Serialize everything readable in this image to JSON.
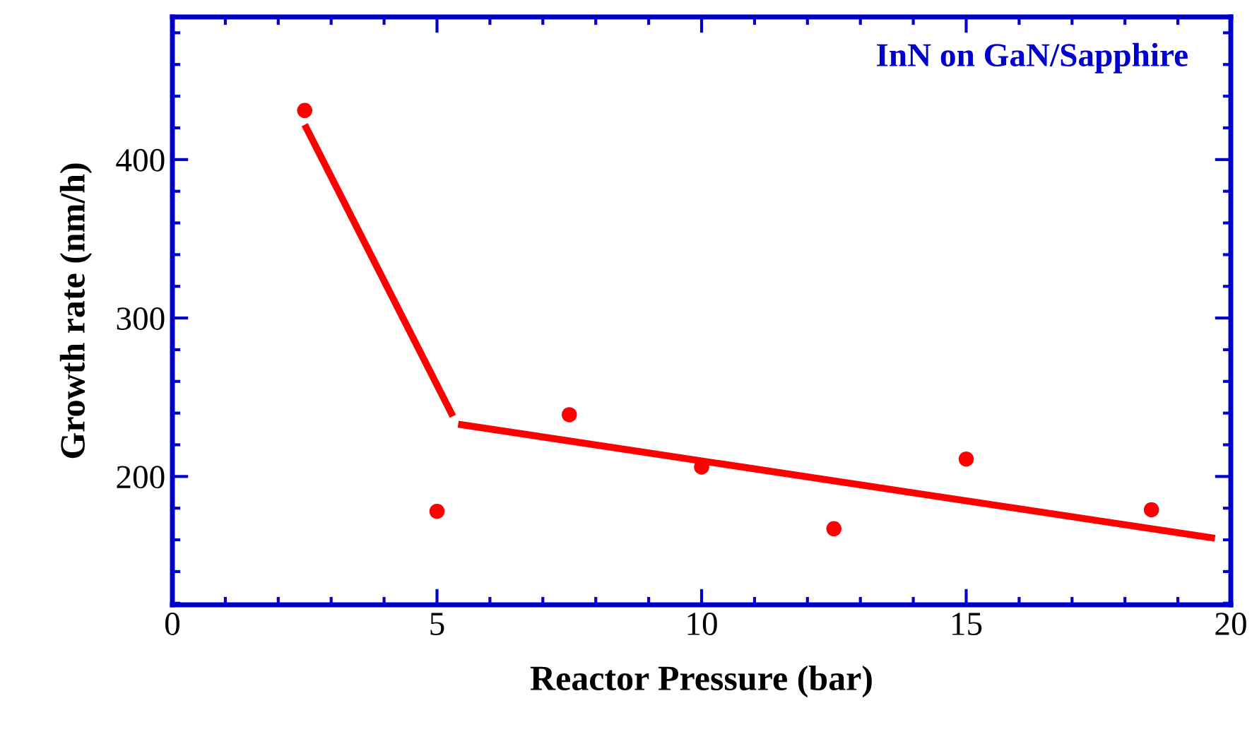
{
  "chart_data": {
    "type": "scatter",
    "xlabel": "Reactor Pressure (bar)",
    "ylabel": "Growth rate (nm/h)",
    "annotations": [
      "InN on GaN/Sapphire"
    ],
    "xlim": [
      0,
      20
    ],
    "xticks": [
      0,
      5,
      10,
      15,
      20
    ],
    "ylim": [
      119,
      490
    ],
    "yticks": [
      200,
      300,
      400
    ],
    "grid": false,
    "legend": false,
    "series": [
      {
        "marker": "circle",
        "color": "#ff0000",
        "x": [
          2.5,
          5,
          7.5,
          10,
          12.5,
          15,
          18.5
        ],
        "values": [
          431,
          178,
          239,
          206,
          167,
          211,
          179
        ]
      },
      {
        "type": "line",
        "color": "#ff0000",
        "x": [
          2.5,
          5.3
        ],
        "values": [
          422,
          238
        ],
        "line_style": "solid"
      },
      {
        "type": "line",
        "color": "#ff0000",
        "x": [
          5.4,
          19.7
        ],
        "values": [
          233,
          161
        ],
        "line_style": "solid"
      }
    ]
  }
}
